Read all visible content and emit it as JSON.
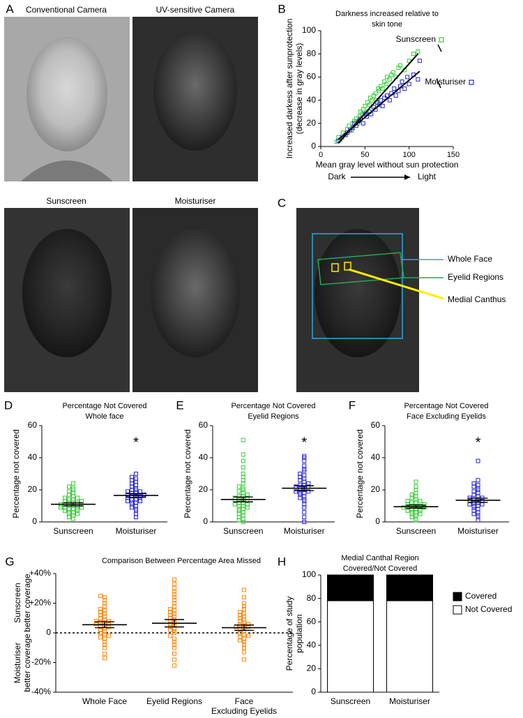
{
  "figure": {
    "panel_labels": [
      "A",
      "B",
      "C",
      "D",
      "E",
      "F",
      "G",
      "H"
    ],
    "photo_captions": [
      "Conventional Camera",
      "UV-sensitive Camera",
      "Sunscreen",
      "Moisturiser"
    ],
    "region_labels": [
      "Whole Face",
      "Eyelid Regions",
      "Medial Canthus"
    ]
  },
  "chart_data": [
    {
      "type": "scatter",
      "title": [
        "Darkness increased relative to",
        "skin tone"
      ],
      "xlabel": "Mean gray level without sun protection",
      "xlabel_ends": [
        "Dark",
        "Light"
      ],
      "ylabel": [
        "Increased darkess after sunprotection",
        "(decrease in gray levels)"
      ],
      "xlim": [
        0,
        150
      ],
      "ylim": [
        0,
        100
      ],
      "xticks": [
        0,
        50,
        100,
        150
      ],
      "yticks": [
        0,
        20,
        40,
        60,
        80,
        100
      ],
      "series": [
        {
          "name": "Sunscreen",
          "color": "#33cc33",
          "x": [
            18,
            20,
            22,
            25,
            28,
            30,
            32,
            35,
            36,
            38,
            40,
            42,
            44,
            45,
            47,
            48,
            50,
            52,
            53,
            55,
            56,
            58,
            60,
            62,
            63,
            65,
            66,
            68,
            70,
            72,
            74,
            75,
            78,
            80,
            82,
            85,
            88,
            90,
            95,
            100,
            105,
            110
          ],
          "values": [
            4,
            8,
            6,
            12,
            10,
            15,
            18,
            14,
            20,
            22,
            24,
            20,
            26,
            30,
            28,
            32,
            35,
            30,
            38,
            36,
            42,
            40,
            44,
            46,
            40,
            50,
            48,
            52,
            50,
            56,
            54,
            60,
            58,
            62,
            64,
            60,
            68,
            70,
            66,
            74,
            80,
            82
          ],
          "fit_x": [
            20,
            110
          ],
          "fit_values": [
            3,
            80
          ]
        },
        {
          "name": "Moisturiser",
          "color": "#2222dd",
          "x": [
            20,
            24,
            28,
            30,
            33,
            36,
            38,
            40,
            43,
            45,
            48,
            50,
            52,
            55,
            57,
            60,
            62,
            64,
            66,
            68,
            70,
            72,
            75,
            78,
            80,
            83,
            85,
            88,
            90,
            92,
            95,
            98,
            100,
            105,
            110,
            112
          ],
          "values": [
            5,
            8,
            10,
            12,
            14,
            16,
            20,
            18,
            22,
            24,
            20,
            28,
            26,
            30,
            28,
            34,
            32,
            38,
            36,
            40,
            35,
            42,
            44,
            40,
            46,
            50,
            44,
            48,
            52,
            56,
            50,
            60,
            54,
            62,
            58,
            74
          ],
          "fit_x": [
            20,
            112
          ],
          "fit_values": [
            6,
            65
          ]
        }
      ]
    },
    {
      "type": "dotplot",
      "title": [
        "Percentage Not Covered",
        "Whole face"
      ],
      "ylabel": [
        "Percentage not covered"
      ],
      "categories": [
        "Sunscreen",
        "Moisturiser"
      ],
      "ylim": [
        0,
        60
      ],
      "yticks": [
        0,
        20,
        40,
        60
      ],
      "groups": [
        {
          "color": "#33cc33",
          "mean": 11,
          "sem": 1,
          "values": [
            2,
            3,
            4,
            5,
            5,
            6,
            6,
            7,
            7,
            8,
            8,
            8,
            9,
            9,
            9,
            10,
            10,
            10,
            11,
            11,
            11,
            12,
            12,
            12,
            13,
            13,
            14,
            14,
            15,
            15,
            16,
            17,
            18,
            19,
            20,
            21,
            22,
            24
          ]
        },
        {
          "color": "#2222dd",
          "mean": 16.5,
          "sem": 1.2,
          "values": [
            3,
            5,
            7,
            8,
            9,
            10,
            11,
            12,
            12,
            13,
            13,
            14,
            14,
            15,
            15,
            16,
            16,
            16,
            17,
            17,
            18,
            18,
            19,
            19,
            20,
            20,
            21,
            22,
            23,
            24,
            25,
            26,
            27,
            28,
            30
          ]
        }
      ],
      "significance": [
        null,
        "*"
      ],
      "significance_color": "#e03030"
    },
    {
      "type": "dotplot",
      "title": [
        "Percentage Not Covered",
        "Eyelid Regions"
      ],
      "ylabel": [
        "Percentage not covered"
      ],
      "categories": [
        "Sunscreen",
        "Moisturiser"
      ],
      "ylim": [
        0,
        60
      ],
      "yticks": [
        0,
        20,
        40,
        60
      ],
      "groups": [
        {
          "color": "#33cc33",
          "mean": 14,
          "sem": 1.5,
          "values": [
            0,
            1,
            2,
            3,
            4,
            5,
            6,
            7,
            8,
            8,
            9,
            10,
            10,
            11,
            11,
            12,
            12,
            13,
            13,
            14,
            14,
            15,
            15,
            16,
            16,
            17,
            18,
            19,
            20,
            21,
            22,
            24,
            26,
            28,
            30,
            34,
            38,
            42,
            51
          ]
        },
        {
          "color": "#2222dd",
          "mean": 21,
          "sem": 1.5,
          "values": [
            0,
            3,
            6,
            9,
            11,
            13,
            14,
            15,
            16,
            17,
            18,
            18,
            19,
            19,
            20,
            20,
            21,
            21,
            22,
            22,
            23,
            23,
            24,
            25,
            26,
            27,
            28,
            29,
            30,
            32,
            33,
            35,
            38,
            40,
            41
          ]
        }
      ],
      "significance": [
        null,
        "*"
      ],
      "significance_color": "#e03030"
    },
    {
      "type": "dotplot",
      "title": [
        "Percentage Not Covered",
        "Face Excluding Eyelids"
      ],
      "ylabel": [
        "Percentage not covered"
      ],
      "categories": [
        "Sunscreen",
        "Moisturiser"
      ],
      "ylim": [
        0,
        60
      ],
      "yticks": [
        0,
        20,
        40,
        60
      ],
      "groups": [
        {
          "color": "#33cc33",
          "mean": 9.5,
          "sem": 1,
          "values": [
            1,
            2,
            3,
            4,
            5,
            5,
            6,
            6,
            7,
            7,
            8,
            8,
            8,
            9,
            9,
            9,
            10,
            10,
            10,
            11,
            11,
            12,
            12,
            13,
            13,
            14,
            15,
            16,
            17,
            18,
            20,
            22,
            25
          ]
        },
        {
          "color": "#2222dd",
          "mean": 13.5,
          "sem": 1.3,
          "values": [
            1,
            3,
            4,
            5,
            6,
            7,
            8,
            9,
            10,
            10,
            11,
            11,
            12,
            12,
            13,
            13,
            14,
            14,
            15,
            15,
            16,
            17,
            18,
            19,
            20,
            21,
            22,
            23,
            24,
            26,
            38
          ]
        }
      ],
      "significance": [
        null,
        "*"
      ],
      "significance_color": "#e03030"
    },
    {
      "type": "dotplot",
      "title": [
        "Comparison Between Percentage Area Missed"
      ],
      "ylabel": [
        [
          "Sunscreen",
          "better coverage"
        ],
        [
          "Moisturiser",
          "better coverage"
        ]
      ],
      "categories": [
        "Whole Face",
        "Eyelid Regions",
        [
          "Face",
          "Excluding Eyelids"
        ]
      ],
      "ylim": [
        -40,
        40
      ],
      "yticks": [
        {
          "value": 40,
          "label": "+40%"
        },
        {
          "value": 20,
          "label": "+20%"
        },
        0,
        {
          "value": -20,
          "label": "-20%"
        },
        {
          "value": -40,
          "label": "-40%"
        }
      ],
      "zero_line": true,
      "groups": [
        {
          "color": "#ff8811",
          "mean": 5.5,
          "sem": 2,
          "values": [
            -17,
            -14,
            -10,
            -8,
            -6,
            -4,
            -3,
            -2,
            -1,
            0,
            1,
            2,
            3,
            4,
            4,
            5,
            5,
            6,
            6,
            7,
            7,
            8,
            8,
            9,
            10,
            11,
            12,
            13,
            14,
            15,
            16,
            18,
            20,
            22,
            24,
            25
          ]
        },
        {
          "color": "#ff8811",
          "mean": 6.5,
          "sem": 2.5,
          "values": [
            -22,
            -18,
            -14,
            -10,
            -8,
            -6,
            -4,
            -2,
            0,
            1,
            2,
            3,
            4,
            5,
            6,
            7,
            8,
            9,
            10,
            11,
            12,
            13,
            14,
            15,
            16,
            18,
            20,
            22,
            24,
            26,
            28,
            30,
            33,
            36
          ]
        },
        {
          "color": "#ff8811",
          "mean": 3.5,
          "sem": 1.8,
          "values": [
            -18,
            -13,
            -10,
            -8,
            -6,
            -5,
            -4,
            -3,
            -2,
            -1,
            0,
            1,
            2,
            3,
            3,
            4,
            4,
            5,
            5,
            6,
            7,
            8,
            9,
            10,
            11,
            12,
            13,
            14,
            16,
            18,
            20,
            24,
            29
          ]
        }
      ]
    },
    {
      "type": "stacked_bar",
      "title": [
        "Medial Canthal Region",
        "Covered/Not Covered"
      ],
      "ylabel": [
        "Percentage of study",
        "population"
      ],
      "categories": [
        "Sunscreen",
        "Moisturiser"
      ],
      "ylim": [
        0,
        100
      ],
      "yticks": [
        0,
        20,
        40,
        60,
        80,
        100
      ],
      "series": [
        {
          "name": "Not Covered",
          "color": "#ffffff",
          "values": [
            78,
            78
          ]
        },
        {
          "name": "Covered",
          "color": "#000000",
          "values": [
            22,
            22
          ]
        }
      ]
    }
  ]
}
